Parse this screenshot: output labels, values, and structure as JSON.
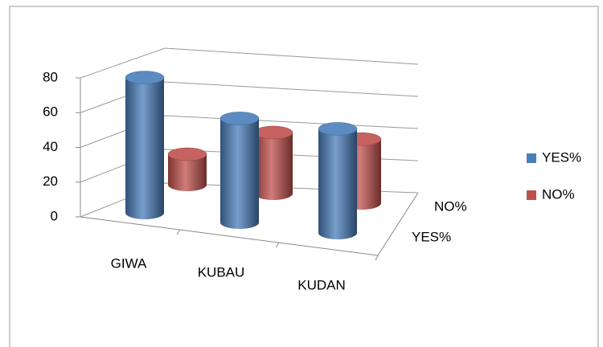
{
  "chart_data": {
    "type": "bar3d",
    "categories": [
      "GIWA",
      "KUBAU",
      "KUDAN"
    ],
    "series": [
      {
        "name": "YES%",
        "color": "#4a7ebb",
        "values": [
          78,
          60,
          60
        ]
      },
      {
        "name": "NO%",
        "color": "#c0504d",
        "values": [
          20,
          40,
          42
        ]
      }
    ],
    "ylim": [
      0,
      80
    ],
    "yticks": [
      0,
      20,
      40,
      60,
      80
    ],
    "grid": true,
    "legend": "right"
  }
}
